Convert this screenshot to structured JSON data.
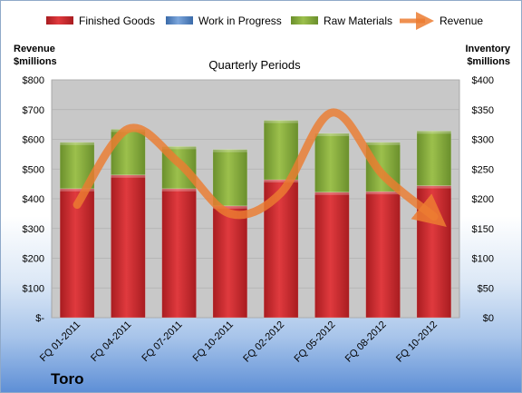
{
  "chart_data": {
    "type": "bar",
    "stacked": true,
    "subtitle": "Quarterly Periods",
    "company": "Toro",
    "categories": [
      "FQ 01-2011",
      "FQ 04-2011",
      "FQ 07-2011",
      "FQ 10-2011",
      "FQ 02-2012",
      "FQ 05-2012",
      "FQ 08-2012",
      "FQ 10-2012"
    ],
    "left_axis": {
      "label_line1": "Revenue",
      "label_line2": "$millions",
      "ylim": [
        0,
        800
      ],
      "ticks": [
        0,
        100,
        200,
        300,
        400,
        500,
        600,
        700,
        800
      ],
      "tick_labels": [
        "$-",
        "$100",
        "$200",
        "$300",
        "$400",
        "$500",
        "$600",
        "$700",
        "$800"
      ]
    },
    "right_axis": {
      "label_line1": "Inventory",
      "label_line2": "$millions",
      "ylim": [
        0,
        400
      ],
      "ticks": [
        0,
        50,
        100,
        150,
        200,
        250,
        300,
        350,
        400
      ],
      "tick_labels": [
        "$0",
        "$50",
        "$100",
        "$150",
        "$200",
        "$250",
        "$300",
        "$350",
        "$400"
      ]
    },
    "series": [
      {
        "name": "Finished Goods",
        "axis": "right",
        "color": "#c9262b",
        "values": [
          217,
          240,
          217,
          188,
          232,
          211,
          212,
          222
        ]
      },
      {
        "name": "Work in Progress",
        "axis": "right",
        "color": "#4f81bd",
        "values": [
          0,
          0,
          0,
          0,
          0,
          0,
          0,
          0
        ]
      },
      {
        "name": "Raw Materials",
        "axis": "right",
        "color": "#7ea33a",
        "values": [
          78,
          77,
          71,
          95,
          100,
          99,
          83,
          92
        ]
      },
      {
        "name": "Revenue",
        "axis": "left",
        "type": "line",
        "color": "#ec7d31",
        "values": [
          380,
          635,
          520,
          350,
          420,
          690,
          480,
          340
        ]
      }
    ],
    "legend_position": "top",
    "grid": true
  },
  "colors": {
    "plot_bg": "#c8c8c8",
    "grid": "#b0b0b0"
  }
}
